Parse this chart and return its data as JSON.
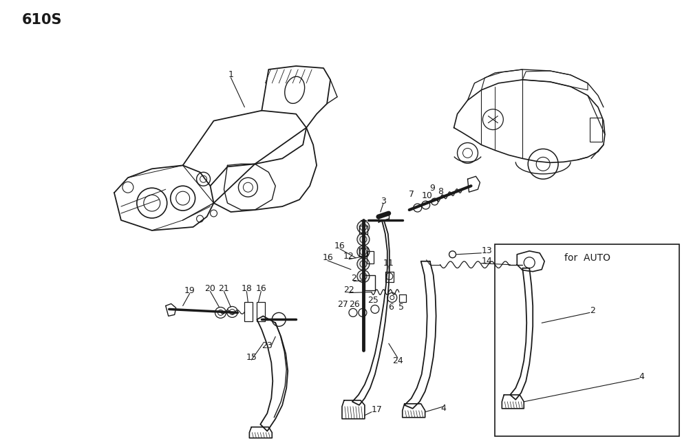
{
  "bg": "#ffffff",
  "lc": "#1a1a1a",
  "page_label": "610S",
  "fw": 9.91,
  "fh": 6.41,
  "dpi": 100
}
